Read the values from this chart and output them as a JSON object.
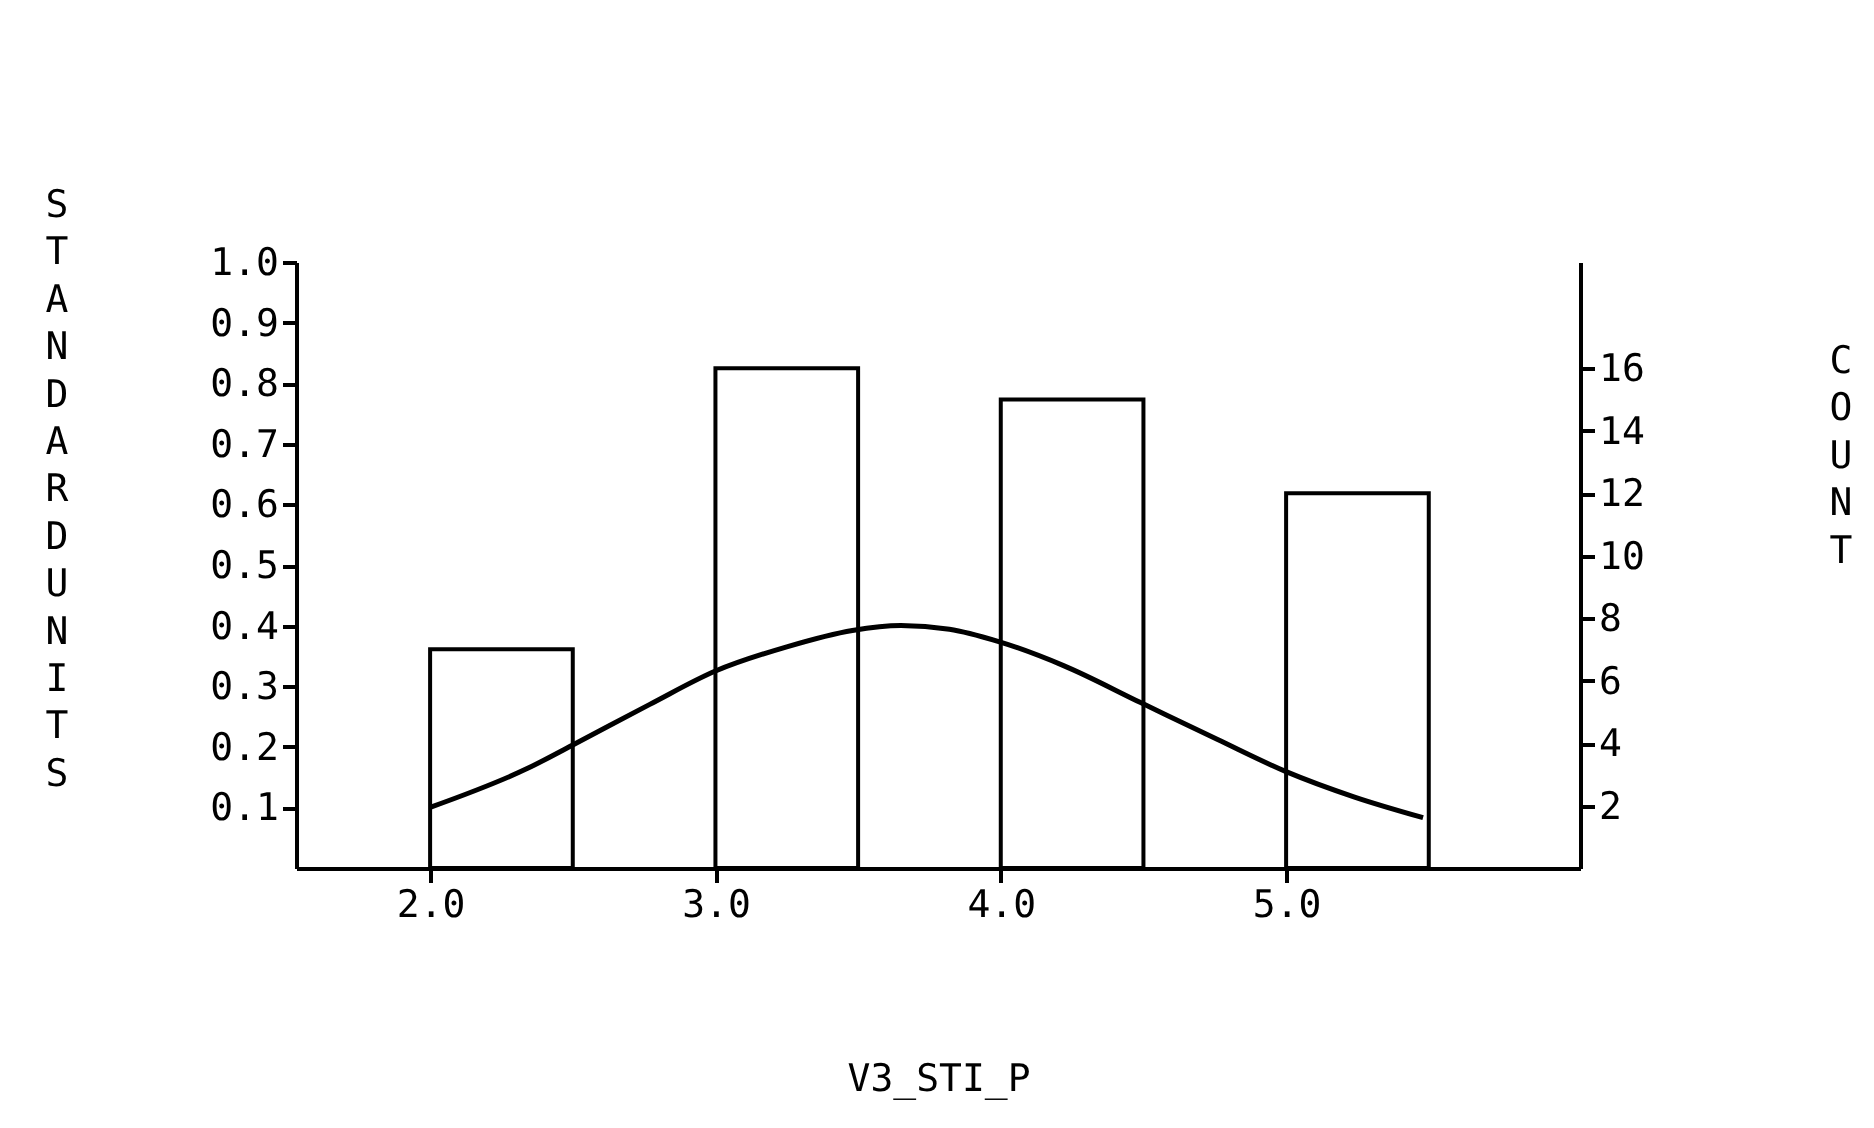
{
  "chart_data": {
    "type": "histogram",
    "xlabel": "V3_STI_P",
    "ylabel": "STANDARD UNITS",
    "y2label": "COUNT",
    "bins": [
      2.0,
      2.5,
      3.0,
      3.5,
      4.0,
      4.5,
      5.0,
      5.5
    ],
    "series": [
      {
        "type": "histogram",
        "axis": "y2",
        "color": "#ffffff",
        "values": [
          7,
          0,
          16,
          0,
          15,
          0,
          12
        ]
      },
      {
        "type": "line",
        "color": "#000000",
        "x": [
          2.0,
          2.34,
          2.5,
          2.77,
          3.0,
          3.25,
          3.48,
          3.65,
          3.82,
          3.99,
          4.22,
          4.49,
          4.76,
          5.0,
          5.24,
          5.48
        ],
        "values": [
          0.1,
          0.164,
          0.203,
          0.27,
          0.325,
          0.365,
          0.392,
          0.4,
          0.394,
          0.374,
          0.334,
          0.273,
          0.212,
          0.159,
          0.117,
          0.083
        ]
      }
    ],
    "xlim": [
      1.53,
      6.03
    ],
    "xticks": [
      {
        "value": 2,
        "label": "2.0"
      },
      {
        "value": 3,
        "label": "3.0"
      },
      {
        "value": 4,
        "label": "4.0"
      },
      {
        "value": 5,
        "label": "5.0"
      }
    ],
    "ylim": [
      0,
      1.0
    ],
    "yticks": [
      0.1,
      0.2,
      0.3,
      0.4,
      0.5,
      0.6,
      0.7,
      0.8,
      0.9,
      {
        "value": 1.0,
        "label": "1.0"
      }
    ],
    "y2lim": [
      0,
      19.4
    ],
    "y2ticks": [
      2,
      4,
      6,
      8,
      10,
      12,
      14,
      16
    ]
  }
}
